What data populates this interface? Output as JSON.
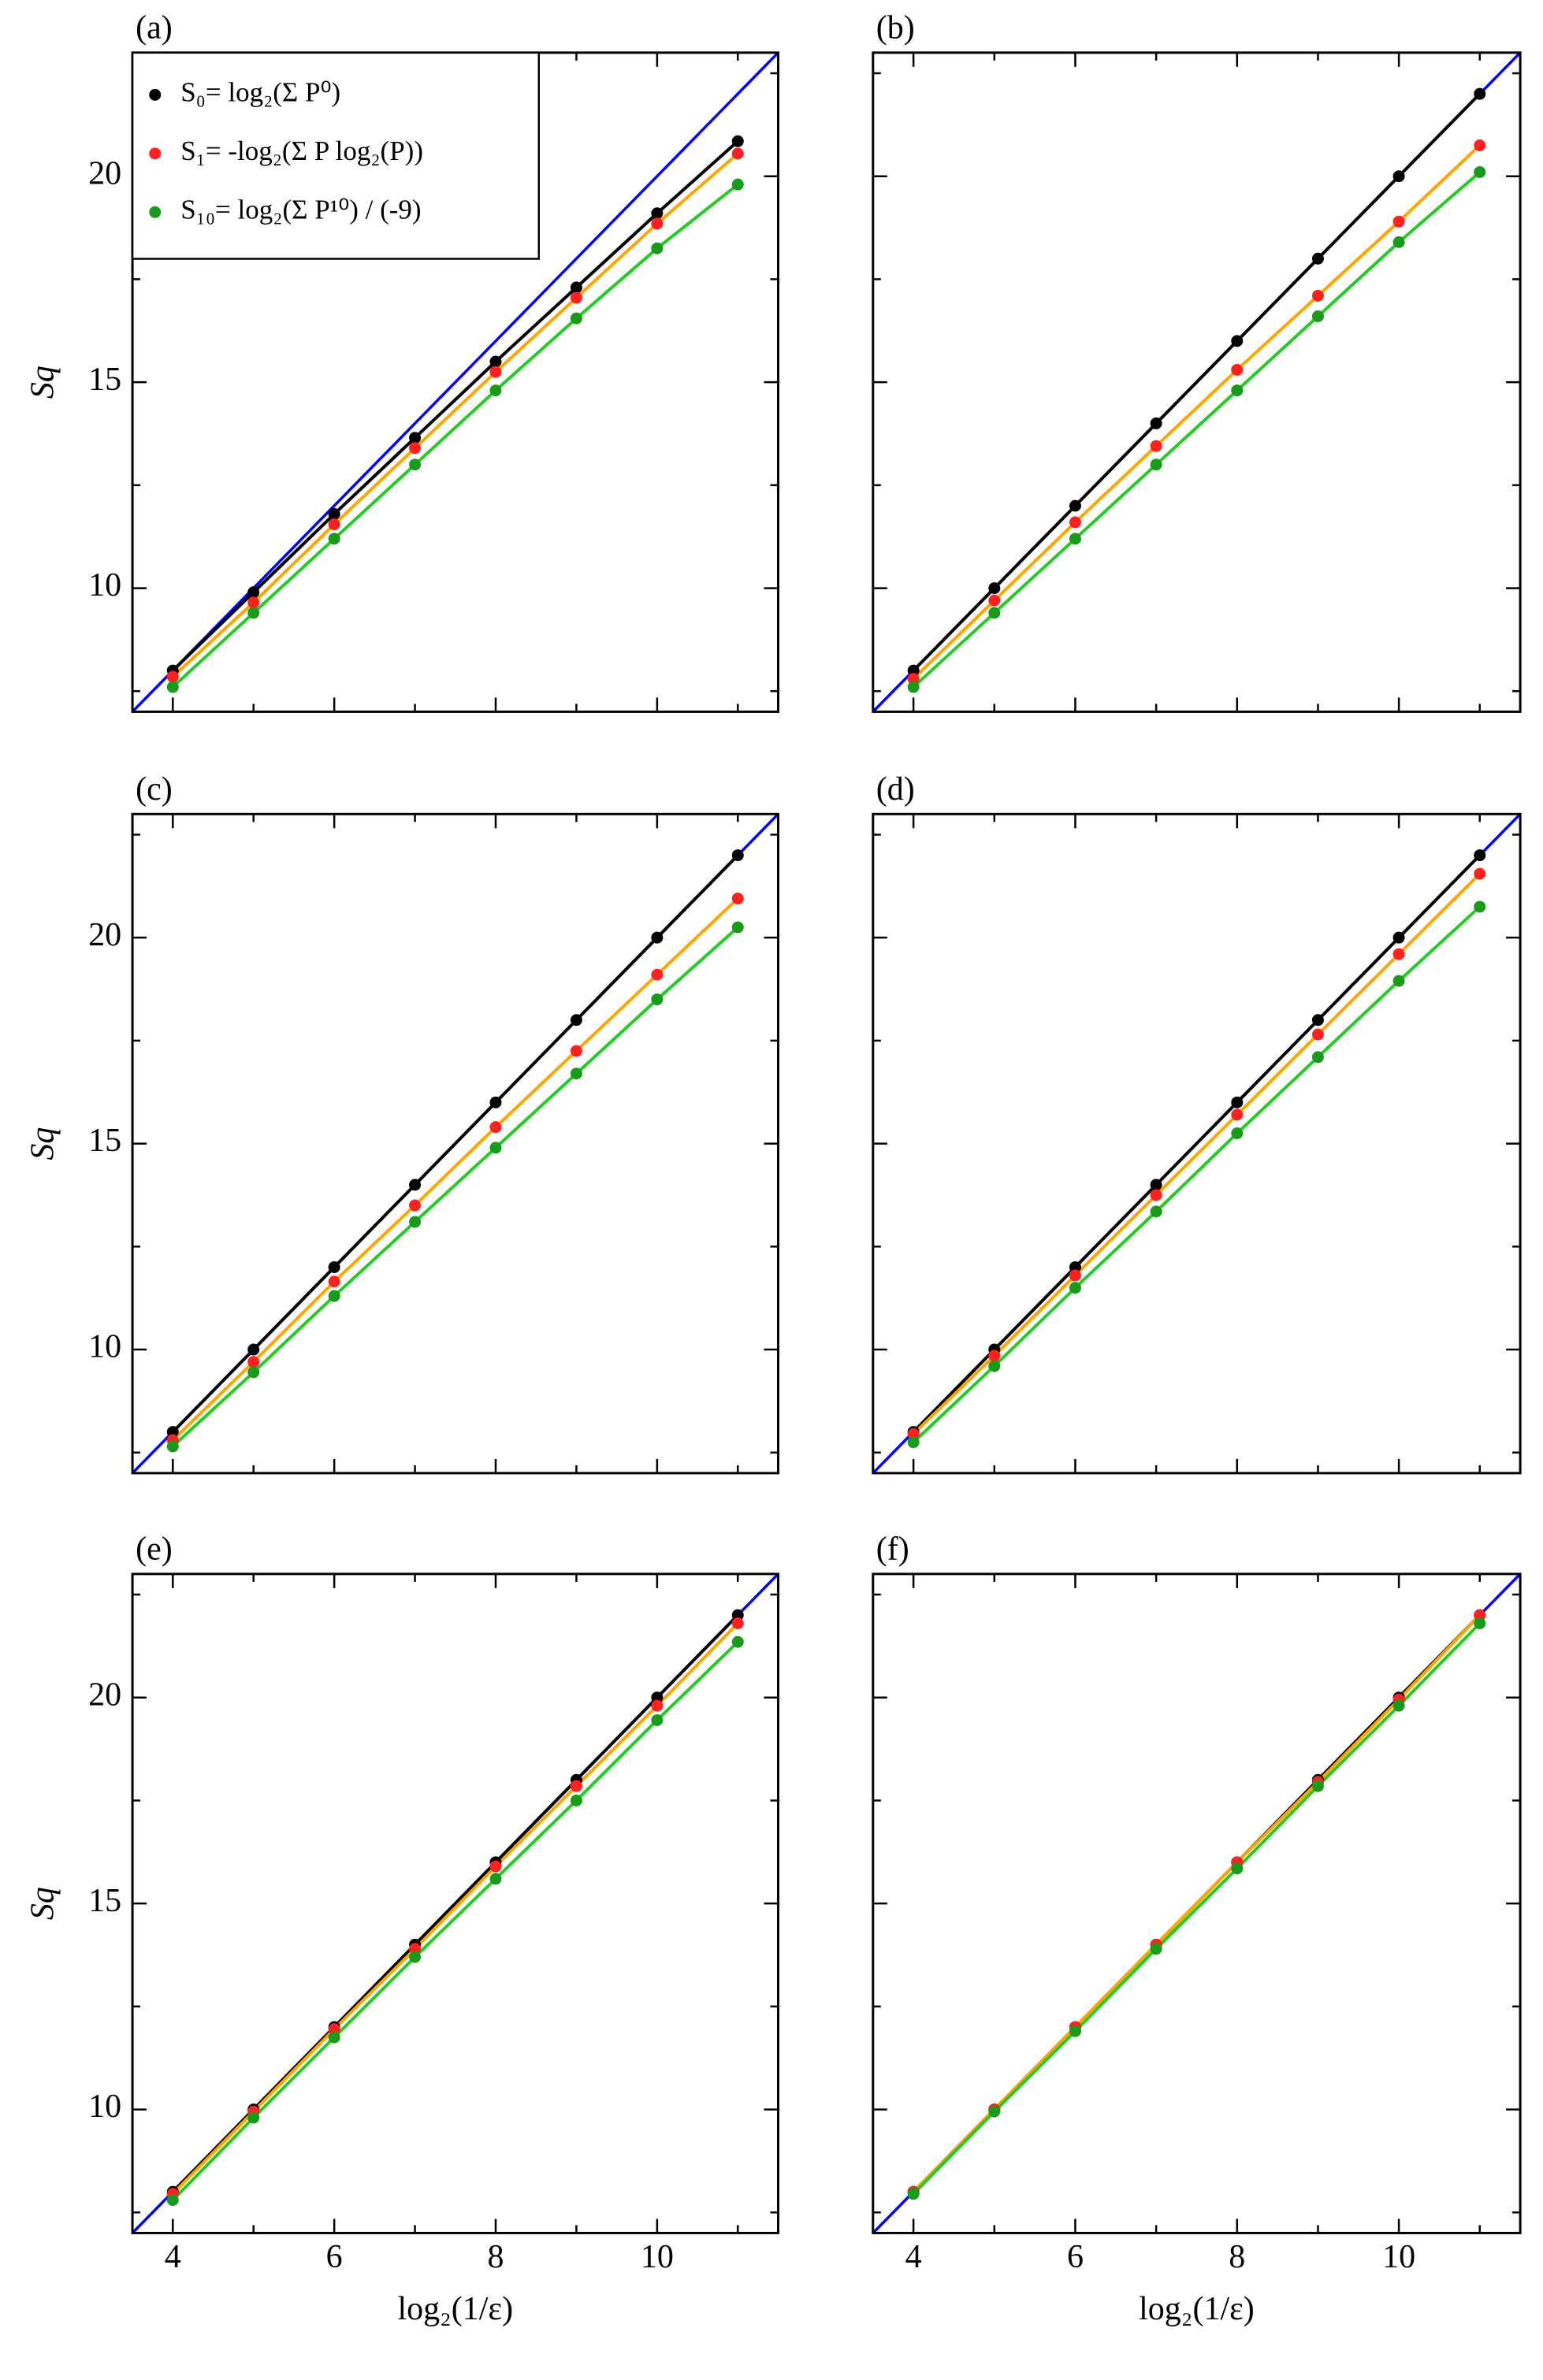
{
  "chart_data": [
    {
      "type": "scatter",
      "title": "(a)",
      "ylabel": "Sq",
      "x": [
        4,
        5,
        6,
        7,
        8,
        9,
        10,
        11
      ],
      "xlim": [
        3.5,
        11.5
      ],
      "ylim": [
        7,
        23
      ],
      "xticks": [
        4,
        6,
        8,
        10
      ],
      "xminor": [
        5,
        7,
        9,
        11
      ],
      "yticks": [
        10,
        15,
        20
      ],
      "yminor": [
        7.5,
        12.5,
        17.5,
        22.5
      ],
      "show_xticklabels": false,
      "show_yticklabels": true,
      "legend": "upper left",
      "reference": {
        "x": [
          3.5,
          11.5
        ],
        "values": [
          7,
          23
        ],
        "color": "#0000ff"
      },
      "series": [
        {
          "name": "S₀= log₂(Σ P⁰)",
          "color": "#000000",
          "line_color": "#000000",
          "values": [
            8,
            9.9,
            11.8,
            13.65,
            15.5,
            17.3,
            19.1,
            20.85
          ]
        },
        {
          "name": "S₁= -log₂(Σ P log₂(P))",
          "color": "#ff2020",
          "line_color": "#ffa500",
          "values": [
            7.85,
            9.65,
            11.55,
            13.4,
            15.25,
            17.05,
            18.85,
            20.55
          ]
        },
        {
          "name": "S₁₀= log₂(Σ P¹⁰) / (-9)",
          "color": "#1a9a1a",
          "line_color": "#22cc22",
          "values": [
            7.6,
            9.4,
            11.2,
            13.0,
            14.8,
            16.55,
            18.25,
            19.8
          ]
        }
      ]
    },
    {
      "type": "scatter",
      "title": "(b)",
      "x": [
        4,
        5,
        6,
        7,
        8,
        9,
        10,
        11
      ],
      "xlim": [
        3.5,
        11.5
      ],
      "ylim": [
        7,
        23
      ],
      "xticks": [
        4,
        6,
        8,
        10
      ],
      "xminor": [
        5,
        7,
        9,
        11
      ],
      "yticks": [
        10,
        15,
        20
      ],
      "yminor": [
        7.5,
        12.5,
        17.5,
        22.5
      ],
      "show_xticklabels": false,
      "show_yticklabels": false,
      "reference": {
        "x": [
          3.5,
          11.5
        ],
        "values": [
          7,
          23
        ],
        "color": "#0000ff"
      },
      "series": [
        {
          "color": "#000000",
          "line_color": "#000000",
          "values": [
            8,
            10,
            12,
            14,
            16,
            18,
            20,
            22
          ]
        },
        {
          "color": "#ff2020",
          "line_color": "#ffa500",
          "values": [
            7.8,
            9.7,
            11.6,
            13.45,
            15.3,
            17.1,
            18.9,
            20.75
          ]
        },
        {
          "color": "#1a9a1a",
          "line_color": "#22cc22",
          "values": [
            7.6,
            9.4,
            11.2,
            13.0,
            14.8,
            16.6,
            18.4,
            20.1
          ]
        }
      ]
    },
    {
      "type": "scatter",
      "title": "(c)",
      "ylabel": "Sq",
      "x": [
        4,
        5,
        6,
        7,
        8,
        9,
        10,
        11
      ],
      "xlim": [
        3.5,
        11.5
      ],
      "ylim": [
        7,
        23
      ],
      "xticks": [
        4,
        6,
        8,
        10
      ],
      "xminor": [
        5,
        7,
        9,
        11
      ],
      "yticks": [
        10,
        15,
        20
      ],
      "yminor": [
        7.5,
        12.5,
        17.5,
        22.5
      ],
      "show_xticklabels": false,
      "show_yticklabels": true,
      "reference": {
        "x": [
          3.5,
          11.5
        ],
        "values": [
          7,
          23
        ],
        "color": "#0000ff"
      },
      "series": [
        {
          "color": "#000000",
          "line_color": "#000000",
          "values": [
            8,
            10,
            12,
            14,
            16,
            18,
            20,
            22
          ]
        },
        {
          "color": "#ff2020",
          "line_color": "#ffa500",
          "values": [
            7.8,
            9.7,
            11.65,
            13.5,
            15.4,
            17.25,
            19.1,
            20.95
          ]
        },
        {
          "color": "#1a9a1a",
          "line_color": "#22cc22",
          "values": [
            7.65,
            9.45,
            11.3,
            13.1,
            14.9,
            16.7,
            18.5,
            20.25
          ]
        }
      ]
    },
    {
      "type": "scatter",
      "title": "(d)",
      "x": [
        4,
        5,
        6,
        7,
        8,
        9,
        10,
        11
      ],
      "xlim": [
        3.5,
        11.5
      ],
      "ylim": [
        7,
        23
      ],
      "xticks": [
        4,
        6,
        8,
        10
      ],
      "xminor": [
        5,
        7,
        9,
        11
      ],
      "yticks": [
        10,
        15,
        20
      ],
      "yminor": [
        7.5,
        12.5,
        17.5,
        22.5
      ],
      "show_xticklabels": false,
      "show_yticklabels": false,
      "reference": {
        "x": [
          3.5,
          11.5
        ],
        "values": [
          7,
          23
        ],
        "color": "#0000ff"
      },
      "series": [
        {
          "color": "#000000",
          "line_color": "#000000",
          "values": [
            8,
            10,
            12,
            14,
            16,
            18,
            20,
            22
          ]
        },
        {
          "color": "#ff2020",
          "line_color": "#ffa500",
          "values": [
            7.95,
            9.85,
            11.8,
            13.75,
            15.7,
            17.65,
            19.6,
            21.55
          ]
        },
        {
          "color": "#1a9a1a",
          "line_color": "#22cc22",
          "values": [
            7.75,
            9.6,
            11.5,
            13.35,
            15.25,
            17.1,
            18.95,
            20.75
          ]
        }
      ]
    },
    {
      "type": "scatter",
      "title": "(e)",
      "xlabel": "log₂(1/ε)",
      "ylabel": "Sq",
      "x": [
        4,
        5,
        6,
        7,
        8,
        9,
        10,
        11
      ],
      "xlim": [
        3.5,
        11.5
      ],
      "ylim": [
        7,
        23
      ],
      "xticks": [
        4,
        6,
        8,
        10
      ],
      "xminor": [
        5,
        7,
        9,
        11
      ],
      "yticks": [
        10,
        15,
        20
      ],
      "yminor": [
        7.5,
        12.5,
        17.5,
        22.5
      ],
      "show_xticklabels": true,
      "show_yticklabels": true,
      "reference": {
        "x": [
          3.5,
          11.5
        ],
        "values": [
          7,
          23
        ],
        "color": "#0000ff"
      },
      "series": [
        {
          "color": "#000000",
          "line_color": "#000000",
          "values": [
            8,
            10,
            12,
            14,
            16,
            18,
            20,
            22
          ]
        },
        {
          "color": "#ff2020",
          "line_color": "#ffa500",
          "values": [
            7.95,
            9.95,
            11.95,
            13.9,
            15.9,
            17.85,
            19.8,
            21.8
          ]
        },
        {
          "color": "#1a9a1a",
          "line_color": "#22cc22",
          "values": [
            7.8,
            9.8,
            11.75,
            13.7,
            15.6,
            17.5,
            19.45,
            21.35
          ]
        }
      ]
    },
    {
      "type": "scatter",
      "title": "(f)",
      "xlabel": "log₂(1/ε)",
      "x": [
        4,
        5,
        6,
        7,
        8,
        9,
        10,
        11
      ],
      "xlim": [
        3.5,
        11.5
      ],
      "ylim": [
        7,
        23
      ],
      "xticks": [
        4,
        6,
        8,
        10
      ],
      "xminor": [
        5,
        7,
        9,
        11
      ],
      "yticks": [
        10,
        15,
        20
      ],
      "yminor": [
        7.5,
        12.5,
        17.5,
        22.5
      ],
      "show_xticklabels": true,
      "show_yticklabels": false,
      "reference": {
        "x": [
          3.5,
          11.5
        ],
        "values": [
          7,
          23
        ],
        "color": "#0000ff"
      },
      "series": [
        {
          "color": "#000000",
          "line_color": "#000000",
          "values": [
            8,
            10,
            12,
            14,
            16,
            18,
            20,
            22
          ]
        },
        {
          "color": "#ff2020",
          "line_color": "#ffa500",
          "values": [
            8,
            10,
            12,
            14,
            16,
            17.95,
            19.95,
            22
          ]
        },
        {
          "color": "#1a9a1a",
          "line_color": "#22cc22",
          "values": [
            7.95,
            9.95,
            11.9,
            13.9,
            15.85,
            17.85,
            19.8,
            21.8
          ]
        }
      ]
    }
  ]
}
